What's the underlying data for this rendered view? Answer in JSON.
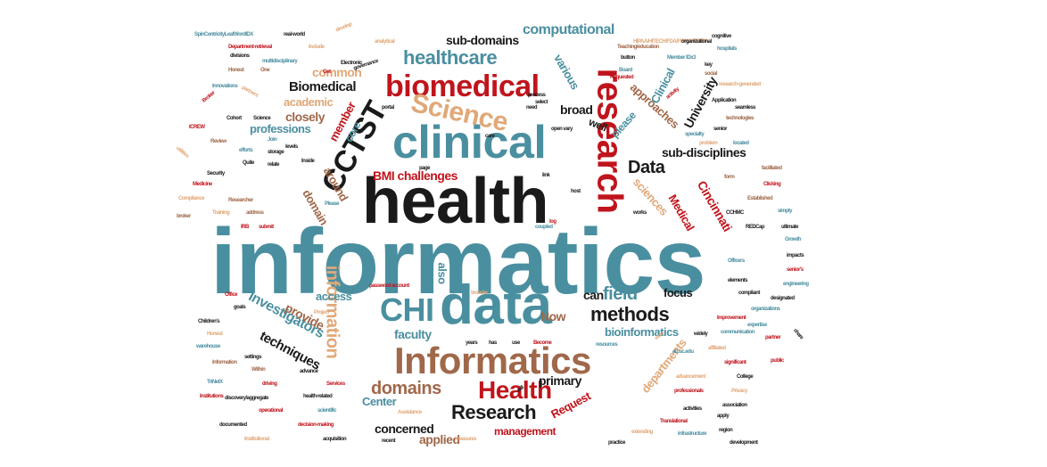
{
  "palette": {
    "black": "#1a1a1a",
    "teal": "#4a8fa0",
    "red": "#c0141c",
    "brown": "#a0684a",
    "tan": "#e0a878"
  },
  "words": [
    {
      "text": "informatics",
      "color": "teal"
    },
    {
      "text": "health",
      "color": "black"
    },
    {
      "text": "data",
      "color": "teal"
    },
    {
      "text": "clinical",
      "color": "teal"
    },
    {
      "text": "Informatics",
      "color": "brown"
    },
    {
      "text": "biomedical",
      "color": "red"
    },
    {
      "text": "research",
      "color": "red"
    },
    {
      "text": "Science",
      "color": "tan"
    },
    {
      "text": "CCTST",
      "color": "black"
    },
    {
      "text": "CHI",
      "color": "teal"
    },
    {
      "text": "Health",
      "color": "red"
    },
    {
      "text": "healthcare",
      "color": "teal"
    },
    {
      "text": "Research",
      "color": "black"
    },
    {
      "text": "information",
      "color": "tan"
    },
    {
      "text": "methods",
      "color": "black"
    },
    {
      "text": "domains",
      "color": "brown"
    },
    {
      "text": "field",
      "color": "teal"
    },
    {
      "text": "Data",
      "color": "black"
    },
    {
      "text": "computational",
      "color": "teal"
    },
    {
      "text": "Biomedical",
      "color": "black"
    },
    {
      "text": "common",
      "color": "tan"
    },
    {
      "text": "academic",
      "color": "tan"
    },
    {
      "text": "closely",
      "color": "brown"
    },
    {
      "text": "professions",
      "color": "teal"
    },
    {
      "text": "sub-domains",
      "color": "black"
    },
    {
      "text": "sub-disciplines",
      "color": "black"
    },
    {
      "text": "BMI challenges",
      "color": "red"
    },
    {
      "text": "Investigators",
      "color": "teal"
    },
    {
      "text": "techniques",
      "color": "black"
    },
    {
      "text": "provide",
      "color": "brown"
    },
    {
      "text": "access",
      "color": "teal"
    },
    {
      "text": "faculty",
      "color": "teal"
    },
    {
      "text": "concerned",
      "color": "black"
    },
    {
      "text": "applied",
      "color": "brown"
    },
    {
      "text": "management",
      "color": "red"
    },
    {
      "text": "Center",
      "color": "teal"
    },
    {
      "text": "primary",
      "color": "black"
    },
    {
      "text": "bioinformatics",
      "color": "teal"
    },
    {
      "text": "focus",
      "color": "black"
    },
    {
      "text": "can",
      "color": "black"
    },
    {
      "text": "Now",
      "color": "brown"
    },
    {
      "text": "Request",
      "color": "red"
    },
    {
      "text": "departments",
      "color": "tan"
    },
    {
      "text": "University",
      "color": "black"
    },
    {
      "text": "Cincinnati",
      "color": "red"
    },
    {
      "text": "Medical",
      "color": "red"
    },
    {
      "text": "sciences",
      "color": "tan"
    },
    {
      "text": "approaches",
      "color": "brown"
    },
    {
      "text": "various",
      "color": "teal"
    },
    {
      "text": "Clinical",
      "color": "teal"
    },
    {
      "text": "broad",
      "color": "black"
    },
    {
      "text": "core",
      "color": "teal"
    },
    {
      "text": "well",
      "color": "black"
    },
    {
      "text": "please",
      "color": "teal"
    },
    {
      "text": "member",
      "color": "red"
    },
    {
      "text": "around",
      "color": "brown"
    },
    {
      "text": "domain",
      "color": "brown"
    },
    {
      "text": "also",
      "color": "teal"
    },
    {
      "text": "SpinCentricityLeafWordIDX",
      "color": "teal"
    },
    {
      "text": "real-world",
      "color": "black"
    },
    {
      "text": "develop",
      "color": "tan"
    },
    {
      "text": "Department-retrieval",
      "color": "red"
    },
    {
      "text": "Include",
      "color": "tan"
    },
    {
      "text": "analytical",
      "color": "tan"
    },
    {
      "text": "divisions",
      "color": "black"
    },
    {
      "text": "multidisciplinary",
      "color": "teal"
    },
    {
      "text": "Electronic",
      "color": "black"
    },
    {
      "text": "Honest",
      "color": "brown"
    },
    {
      "text": "One",
      "color": "brown"
    },
    {
      "text": "Get",
      "color": "red"
    },
    {
      "text": "governance",
      "color": "black"
    },
    {
      "text": "Innovations",
      "color": "teal"
    },
    {
      "text": "partners",
      "color": "tan"
    },
    {
      "text": "Broker",
      "color": "red"
    },
    {
      "text": "Cohort",
      "color": "black"
    },
    {
      "text": "Science",
      "color": "black"
    },
    {
      "text": "ICREW",
      "color": "red"
    },
    {
      "text": "Review",
      "color": "brown"
    },
    {
      "text": "utilities",
      "color": "tan"
    },
    {
      "text": "efforts",
      "color": "teal"
    },
    {
      "text": "storage",
      "color": "black"
    },
    {
      "text": "Quite",
      "color": "black"
    },
    {
      "text": "relate",
      "color": "black"
    },
    {
      "text": "Security",
      "color": "black"
    },
    {
      "text": "Medicine",
      "color": "red"
    },
    {
      "text": "Compliance",
      "color": "tan"
    },
    {
      "text": "Researcher",
      "color": "brown"
    },
    {
      "text": "Training",
      "color": "tan"
    },
    {
      "text": "address",
      "color": "brown"
    },
    {
      "text": "broker",
      "color": "brown"
    },
    {
      "text": "IRB",
      "color": "red"
    },
    {
      "text": "submit",
      "color": "red"
    },
    {
      "text": "Office",
      "color": "red"
    },
    {
      "text": "Children's",
      "color": "black"
    },
    {
      "text": "Honest",
      "color": "tan"
    },
    {
      "text": "warehouse",
      "color": "teal"
    },
    {
      "text": "Information",
      "color": "brown"
    },
    {
      "text": "TriNetX",
      "color": "teal"
    },
    {
      "text": "Institutions",
      "color": "red"
    },
    {
      "text": "documented",
      "color": "black"
    },
    {
      "text": "Institutional",
      "color": "tan"
    },
    {
      "text": "acquisition",
      "color": "black"
    },
    {
      "text": "recent",
      "color": "black"
    },
    {
      "text": "measures",
      "color": "tan"
    },
    {
      "text": "decision-making",
      "color": "red"
    },
    {
      "text": "operational",
      "color": "red"
    },
    {
      "text": "scientific",
      "color": "teal"
    },
    {
      "text": "health-related",
      "color": "black"
    },
    {
      "text": "Assistance",
      "color": "tan"
    },
    {
      "text": "discovery/aggregate",
      "color": "black"
    },
    {
      "text": "driving",
      "color": "red"
    },
    {
      "text": "Services",
      "color": "red"
    },
    {
      "text": "Within",
      "color": "brown"
    },
    {
      "text": "advance",
      "color": "black"
    },
    {
      "text": "settings",
      "color": "black"
    },
    {
      "text": "password account",
      "color": "red"
    },
    {
      "text": "years",
      "color": "black"
    },
    {
      "text": "has",
      "color": "black"
    },
    {
      "text": "use",
      "color": "black"
    },
    {
      "text": "Become",
      "color": "red"
    },
    {
      "text": "resources",
      "color": "teal"
    },
    {
      "text": "easy",
      "color": "tan"
    },
    {
      "text": "ab.uc.edu",
      "color": "teal"
    },
    {
      "text": "affiliated",
      "color": "tan"
    },
    {
      "text": "widely",
      "color": "black"
    },
    {
      "text": "Improvement",
      "color": "red"
    },
    {
      "text": "communication",
      "color": "teal"
    },
    {
      "text": "expertise",
      "color": "teal"
    },
    {
      "text": "partner",
      "color": "red"
    },
    {
      "text": "significant",
      "color": "red"
    },
    {
      "text": "public",
      "color": "red"
    },
    {
      "text": "advancement",
      "color": "tan"
    },
    {
      "text": "College",
      "color": "black"
    },
    {
      "text": "professionals",
      "color": "red"
    },
    {
      "text": "Privacy",
      "color": "tan"
    },
    {
      "text": "association",
      "color": "black"
    },
    {
      "text": "activities",
      "color": "black"
    },
    {
      "text": "apply",
      "color": "black"
    },
    {
      "text": "Translational",
      "color": "red"
    },
    {
      "text": "extending",
      "color": "tan"
    },
    {
      "text": "infrastructure",
      "color": "teal"
    },
    {
      "text": "region",
      "color": "black"
    },
    {
      "text": "development",
      "color": "black"
    },
    {
      "text": "practice",
      "color": "black"
    },
    {
      "text": "cognitive",
      "color": "black"
    },
    {
      "text": "HIPAA/HITECH/FDA/FISMA/FERPA",
      "color": "tan"
    },
    {
      "text": "organizational",
      "color": "black"
    },
    {
      "text": "hospitals",
      "color": "teal"
    },
    {
      "text": "Teaching/education",
      "color": "brown"
    },
    {
      "text": "button",
      "color": "black"
    },
    {
      "text": "Member IDx3",
      "color": "teal"
    },
    {
      "text": "Board",
      "color": "teal"
    },
    {
      "text": "Requested",
      "color": "red"
    },
    {
      "text": "key",
      "color": "black"
    },
    {
      "text": "social",
      "color": "brown"
    },
    {
      "text": "research-generated",
      "color": "tan"
    },
    {
      "text": "seamless",
      "color": "black"
    },
    {
      "text": "Application",
      "color": "black"
    },
    {
      "text": "activity",
      "color": "red"
    },
    {
      "text": "technologies",
      "color": "brown"
    },
    {
      "text": "senior",
      "color": "black"
    },
    {
      "text": "specialty",
      "color": "teal"
    },
    {
      "text": "problem",
      "color": "tan"
    },
    {
      "text": "located",
      "color": "teal"
    },
    {
      "text": "facilitated",
      "color": "brown"
    },
    {
      "text": "Clicking",
      "color": "red"
    },
    {
      "text": "Established",
      "color": "brown"
    },
    {
      "text": "simply",
      "color": "teal"
    },
    {
      "text": "ultimate",
      "color": "black"
    },
    {
      "text": "REDCap",
      "color": "black"
    },
    {
      "text": "Growth",
      "color": "teal"
    },
    {
      "text": "impacts",
      "color": "black"
    },
    {
      "text": "senior's",
      "color": "red"
    },
    {
      "text": "engineering",
      "color": "teal"
    },
    {
      "text": "designated",
      "color": "black"
    },
    {
      "text": "compliant",
      "color": "black"
    },
    {
      "text": "organizations",
      "color": "teal"
    },
    {
      "text": "Officers",
      "color": "teal"
    },
    {
      "text": "elements",
      "color": "black"
    },
    {
      "text": "share",
      "color": "black"
    },
    {
      "text": "CCHMC",
      "color": "black"
    },
    {
      "text": "works",
      "color": "black"
    },
    {
      "text": "host",
      "color": "black"
    },
    {
      "text": "link",
      "color": "black"
    },
    {
      "text": "page",
      "color": "black"
    },
    {
      "text": "Join",
      "color": "teal"
    },
    {
      "text": "levels",
      "color": "black"
    },
    {
      "text": "Inside",
      "color": "black"
    },
    {
      "text": "Please",
      "color": "teal"
    },
    {
      "text": "coupled",
      "color": "teal"
    },
    {
      "text": "log",
      "color": "red"
    },
    {
      "text": "care",
      "color": "black"
    },
    {
      "text": "open vary",
      "color": "black"
    },
    {
      "text": "select",
      "color": "black"
    },
    {
      "text": "need",
      "color": "black"
    },
    {
      "text": "portal",
      "color": "black"
    },
    {
      "text": "process",
      "color": "black"
    },
    {
      "text": "goals",
      "color": "black"
    },
    {
      "text": "Project",
      "color": "tan"
    },
    {
      "text": "broader",
      "color": "tan"
    },
    {
      "text": "will",
      "color": "black"
    },
    {
      "text": "form",
      "color": "brown"
    },
    {
      "text": "study",
      "color": "black"
    }
  ]
}
